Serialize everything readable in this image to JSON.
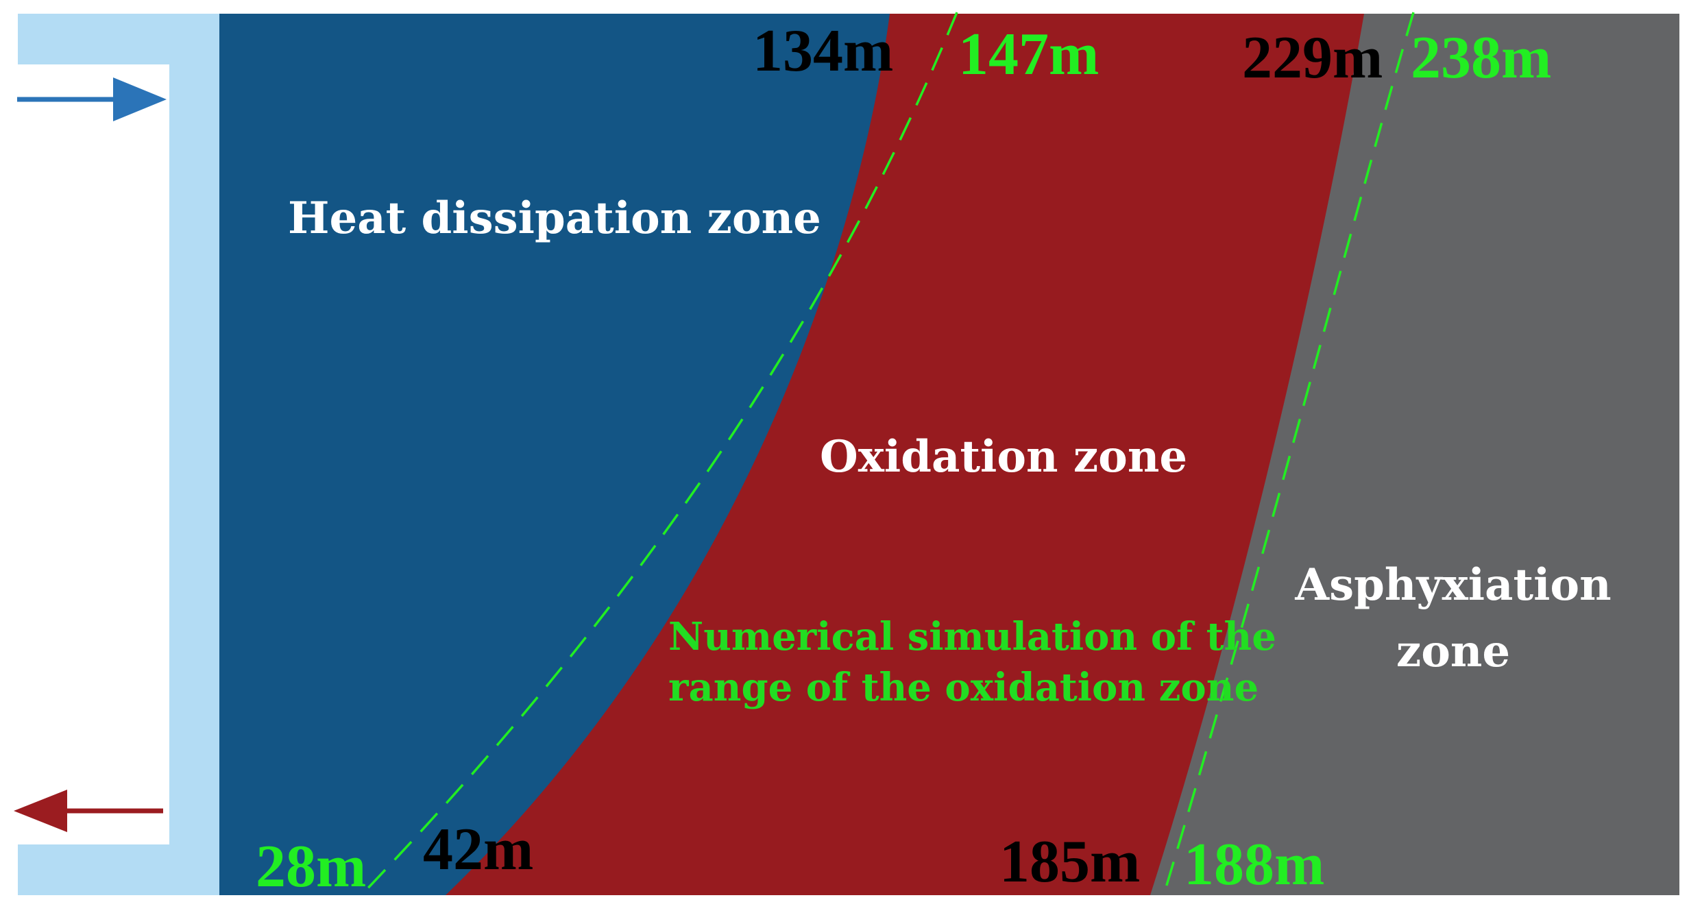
{
  "colors": {
    "airway": "#b3dcf4",
    "heat_dissipation": "#135585",
    "oxidation": "#971b1f",
    "asphyxiation": "#636466",
    "intake_arrow": "#2b74b8",
    "return_arrow": "#9b1c20",
    "simulation_line": "#22ee22",
    "measured_text": "#000000"
  },
  "zones": {
    "heat_dissipation": "Heat dissipation zone",
    "oxidation": "Oxidation zone",
    "asphyxiation_line1": "Asphyxiation",
    "asphyxiation_line2": "zone"
  },
  "boundaries": {
    "measured_top_inner": "134m",
    "measured_top_outer": "229m",
    "measured_bottom_inner": "42m",
    "measured_bottom_outer": "185m",
    "simulated_top_inner": "147m",
    "simulated_top_outer": "238m",
    "simulated_bottom_inner": "28m",
    "simulated_bottom_outer": "188m"
  },
  "simulation_label": {
    "line1": "Numerical simulation of the",
    "line2": "range of the oxidation zone"
  },
  "arrows": {
    "intake": "intake-arrow",
    "return": "return-arrow"
  }
}
